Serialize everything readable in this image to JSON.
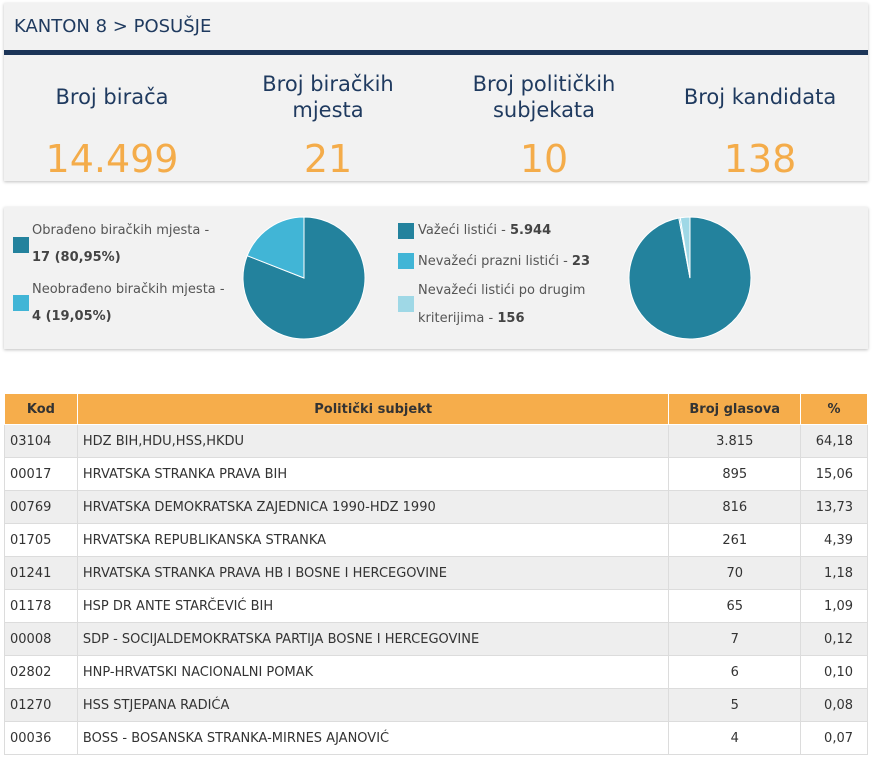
{
  "header": {
    "breadcrumb": "KANTON 8 > POSUŠJE"
  },
  "stats": [
    {
      "label_lines": [
        "Broj birača"
      ],
      "value": "14.499"
    },
    {
      "label_lines": [
        "Broj biračkih",
        "mjesta"
      ],
      "value": "21"
    },
    {
      "label_lines": [
        "Broj političkih",
        "subjekata"
      ],
      "value": "10"
    },
    {
      "label_lines": [
        "Broj kandidata"
      ],
      "value": "138"
    }
  ],
  "polling_legend": {
    "processed_label": "Obrađeno biračkih mjesta -",
    "processed_value": "17 (80,95%)",
    "unprocessed_label": "Neobrađeno biračkih mjesta -",
    "unprocessed_value": "4 (19,05%)"
  },
  "ballots_legend": {
    "valid_label": "Važeći listići -",
    "valid_value": "5.944",
    "invalid_empty_label": "Nevažeći prazni listići -",
    "invalid_empty_value": "23",
    "invalid_other_label_line1": "Nevažeći listići po drugim",
    "invalid_other_label_line2": "kriterijima -",
    "invalid_other_value": "156"
  },
  "colors": {
    "dark_teal": "#23829d",
    "light_blue": "#41b5d6",
    "pale_blue": "#9fd8e6",
    "orange": "#f6ad4b",
    "navy": "#1c3558"
  },
  "pie_polling": [
    {
      "name": "processed",
      "value": 17,
      "color": "#23829d"
    },
    {
      "name": "unprocessed",
      "value": 4,
      "color": "#41b5d6"
    }
  ],
  "pie_ballots": [
    {
      "name": "valid",
      "value": 5944,
      "color": "#23829d"
    },
    {
      "name": "invalid_empty",
      "value": 23,
      "color": "#41b5d6"
    },
    {
      "name": "invalid_other",
      "value": 156,
      "color": "#9fd8e6"
    }
  ],
  "table": {
    "headers": {
      "kod": "Kod",
      "subjekt": "Politički subjekt",
      "glasovi": "Broj glasova",
      "pct": "%"
    },
    "rows": [
      {
        "kod": "03104",
        "subjekt": "HDZ BIH,HDU,HSS,HKDU",
        "glasovi": "3.815",
        "pct": "64,18"
      },
      {
        "kod": "00017",
        "subjekt": "HRVATSKA STRANKA PRAVA BIH",
        "glasovi": "895",
        "pct": "15,06"
      },
      {
        "kod": "00769",
        "subjekt": "HRVATSKA DEMOKRATSKA ZAJEDNICA 1990-HDZ 1990",
        "glasovi": "816",
        "pct": "13,73"
      },
      {
        "kod": "01705",
        "subjekt": "HRVATSKA REPUBLIKANSKA STRANKA",
        "glasovi": "261",
        "pct": "4,39"
      },
      {
        "kod": "01241",
        "subjekt": "HRVATSKA STRANKA PRAVA HB I BOSNE I HERCEGOVINE",
        "glasovi": "70",
        "pct": "1,18"
      },
      {
        "kod": "01178",
        "subjekt": "HSP DR ANTE STARČEVIĆ BIH",
        "glasovi": "65",
        "pct": "1,09"
      },
      {
        "kod": "00008",
        "subjekt": "SDP - SOCIJALDEMOKRATSKA PARTIJA BOSNE I HERCEGOVINE",
        "glasovi": "7",
        "pct": "0,12"
      },
      {
        "kod": "02802",
        "subjekt": "HNP-HRVATSKI NACIONALNI POMAK",
        "glasovi": "6",
        "pct": "0,10"
      },
      {
        "kod": "01270",
        "subjekt": "HSS STJEPANA RADIĆA",
        "glasovi": "5",
        "pct": "0,08"
      },
      {
        "kod": "00036",
        "subjekt": "BOSS - BOSANSKA STRANKA-MIRNES AJANOVIĆ",
        "glasovi": "4",
        "pct": "0,07"
      }
    ]
  }
}
